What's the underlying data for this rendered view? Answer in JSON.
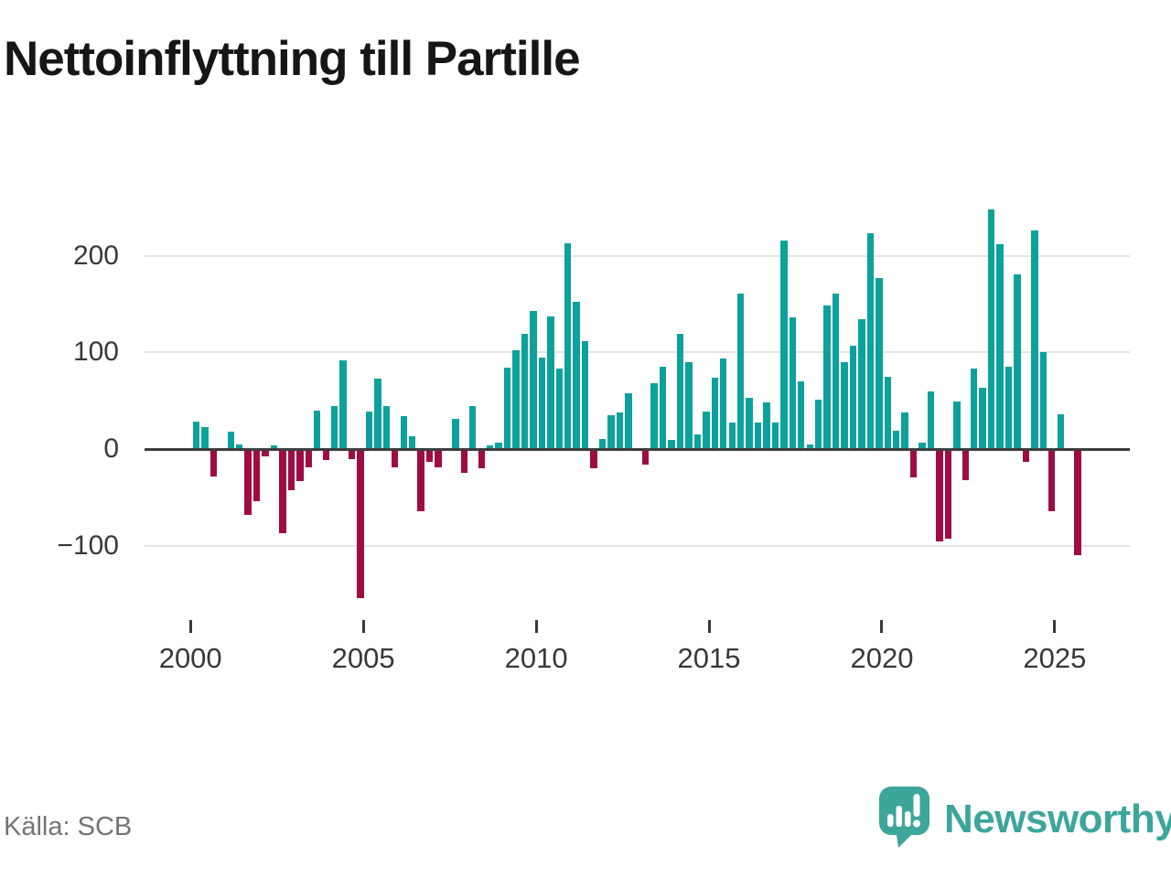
{
  "title": "Nettoinflyttning till Partille",
  "source": "Källa: SCB",
  "branding": {
    "name": "Newsworthy"
  },
  "colors": {
    "positive": "#0ca29b",
    "negative": "#9f0c44",
    "grid": "#e4e4e4",
    "zero_axis": "#3d3d3d",
    "axis_text": "#383838",
    "title_text": "#161616",
    "source_text": "#747474",
    "brand": "#3da69b"
  },
  "chart_data": {
    "type": "bar",
    "title": "Nettoinflyttning till Partille",
    "xlabel": "",
    "ylabel": "",
    "grid": "horizontal",
    "legend": "none",
    "ylim": [
      -170,
      260
    ],
    "y_ticks": [
      200,
      100,
      0,
      -100
    ],
    "y_tick_labels": [
      "200",
      "100",
      "0",
      "−100"
    ],
    "x_tick_years": [
      2000,
      2005,
      2010,
      2015,
      2020,
      2025
    ],
    "x_tick_labels": [
      "2000",
      "2005",
      "2010",
      "2015",
      "2020",
      "2025"
    ],
    "start_year": 2000,
    "start_quarter": 1,
    "frequency": "quarterly",
    "values": [
      28,
      23,
      -28,
      0,
      18,
      5,
      -68,
      -54,
      -8,
      4,
      -87,
      -43,
      -33,
      -19,
      40,
      -11,
      44,
      92,
      -10,
      -154,
      39,
      73,
      44,
      -19,
      34,
      13,
      -64,
      -13,
      -19,
      0,
      31,
      -25,
      44,
      -20,
      4,
      7,
      84,
      102,
      119,
      143,
      95,
      137,
      83,
      213,
      152,
      112,
      -20,
      10,
      35,
      38,
      58,
      0,
      -16,
      68,
      85,
      9,
      119,
      90,
      15,
      39,
      74,
      94,
      27,
      161,
      53,
      27,
      48,
      27,
      216,
      136,
      70,
      5,
      51,
      149,
      161,
      90,
      107,
      134,
      223,
      177,
      75,
      19,
      38,
      -29,
      7,
      60,
      -96,
      -93,
      49,
      -32,
      83,
      63,
      248,
      212,
      85,
      181,
      -13,
      226,
      100,
      -64,
      36,
      0,
      -110
    ]
  }
}
